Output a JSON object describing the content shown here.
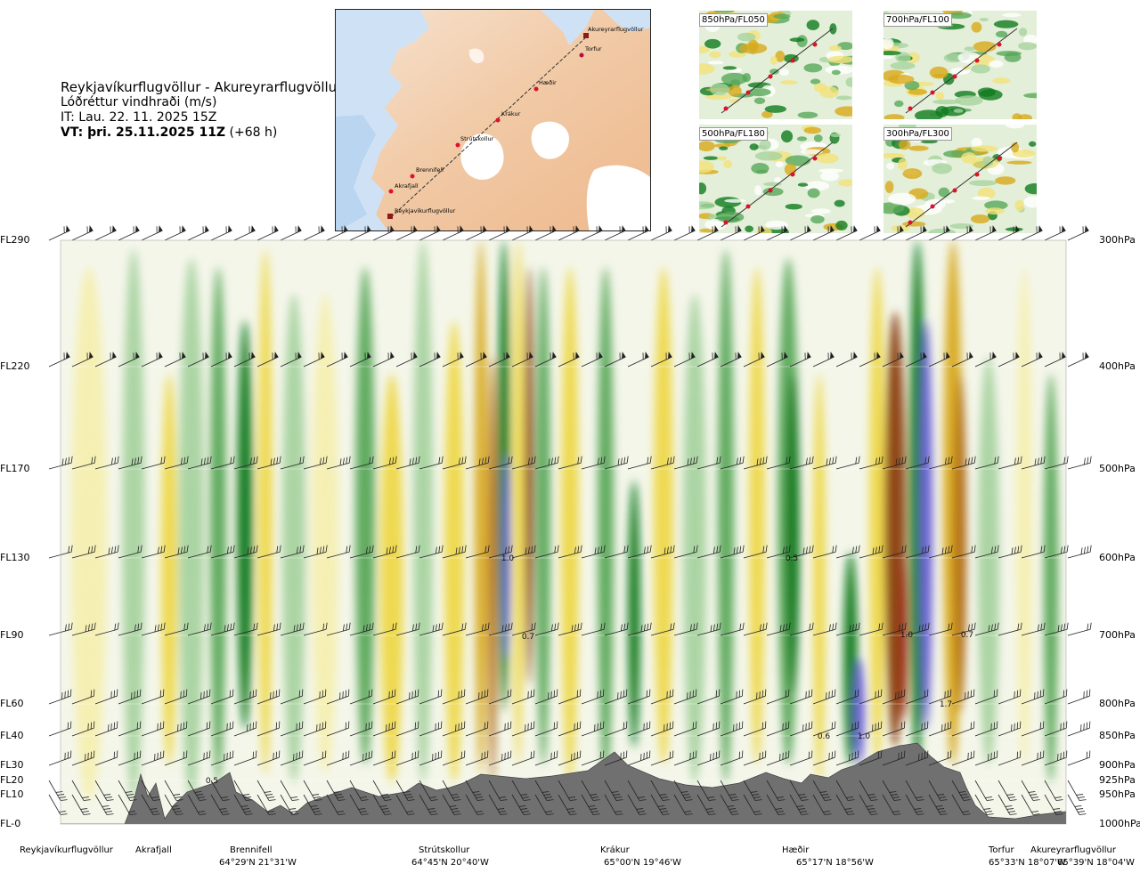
{
  "header": {
    "route": "Reykjavíkurflugvöllur - Akureyrarflugvöllur",
    "variable": "Lóðréttur vindhraði (m/s)",
    "it": "IT: Lau. 22. 11. 2025 15Z",
    "vt_bold": "VT: þri. 25.11.2025 11Z",
    "vt_rest": " (+68 h)"
  },
  "map": {
    "places": [
      "Akureyrarflugvöllur",
      "Torfur",
      "Hæðir",
      "Krákur",
      "Strútskollur",
      "Brennifell",
      "Akrafjall",
      "Reykjavíkurflugvöllur"
    ]
  },
  "thumbnails": [
    {
      "label": "850hPa/FL050"
    },
    {
      "label": "700hPa/FL100"
    },
    {
      "label": "500hPa/FL180"
    },
    {
      "label": "300hPa/FL300"
    }
  ],
  "chart_data": {
    "type": "heatmap",
    "title": "Lóðréttur vindhraði (m/s)",
    "levels_fl": [
      "FL290",
      "FL220",
      "FL170",
      "FL130",
      "FL90",
      "FL60",
      "FL40",
      "FL30",
      "FL20",
      "FL10",
      "FL-0"
    ],
    "levels_hpa": [
      "300hPa",
      "400hPa",
      "500hPa",
      "600hPa",
      "700hPa",
      "800hPa",
      "850hPa",
      "900hPa",
      "925hPa",
      "950hPa",
      "1000hPa"
    ],
    "pressure_values": [
      300,
      400,
      500,
      600,
      700,
      800,
      850,
      900,
      925,
      950,
      1000
    ],
    "waypoints": [
      {
        "name": "Reykjavíkurflugvöllur",
        "coord": ""
      },
      {
        "name": "Akrafjall",
        "coord": ""
      },
      {
        "name": "Brennifell",
        "coord": "64°29'N 21°31'W"
      },
      {
        "name": "Strútskollur",
        "coord": "64°45'N 20°40'W"
      },
      {
        "name": "Krákur",
        "coord": "65°00'N 19°46'W"
      },
      {
        "name": "Hæðir",
        "coord": "65°17'N 18°56'W"
      },
      {
        "name": "Torfur",
        "coord": "65°33'N 18°07'W"
      },
      {
        "name": "Akureyrarflugvöllur",
        "coord": "65°39'N 18°04'W"
      }
    ],
    "annotations": [
      "1.0",
      "0.7",
      "0.5",
      "1.0",
      "0.7",
      "1.7",
      "0.6",
      "1.0",
      "0.5"
    ],
    "colors": {
      "strong_up": "#6a5ed8",
      "up3": "#0f7a1e",
      "up2": "#58a85a",
      "up1": "#a8d3a0",
      "up0": "#d8edd0",
      "neutral": "#f2f6e8",
      "down0": "#f6efb0",
      "down1": "#eed84a",
      "down2": "#d8a91a",
      "down3": "#b06a14",
      "strong_down": "#8a3e12",
      "extreme_down": "#a01818",
      "terrain": "#707070"
    }
  }
}
